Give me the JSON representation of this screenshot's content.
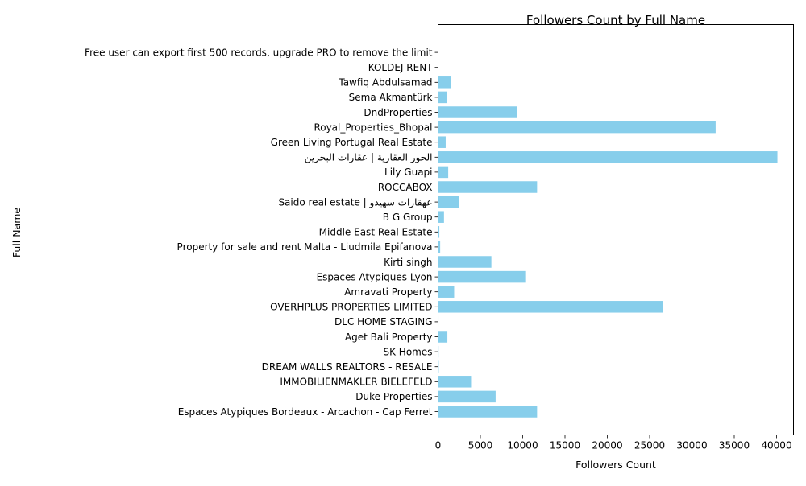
{
  "chart_data": {
    "type": "bar",
    "orientation": "horizontal",
    "title": "Followers Count by Full Name",
    "xlabel": "Followers Count",
    "ylabel": "Full Name",
    "xlim": [
      0,
      42000
    ],
    "xticks": [
      0,
      5000,
      10000,
      15000,
      20000,
      25000,
      30000,
      35000,
      40000
    ],
    "xtick_labels": [
      "0",
      "5000",
      "10000",
      "15000",
      "20000",
      "25000",
      "30000",
      "35000",
      "40000"
    ],
    "grid": false,
    "bar_color": "#87CEEB",
    "categories": [
      "Espaces Atypiques Bordeaux - Arcachon - Cap Ferret",
      "Duke Properties",
      "IMMOBILIENMAKLER BIELEFELD",
      "DREAM WALLS REALTORS - RESALE",
      "SK Homes",
      "Aget Bali Property",
      "DLC HOME STAGING",
      "OVERHPLUS PROPERTIES LIMITED",
      "Amravati Property",
      "Espaces Atypiques Lyon",
      "Kirti singh",
      "Property for sale and rent Malta - Liudmila Epifanova",
      "Middle East Real Estate",
      "B G Group",
      "Saido real estate | عهقارات سهيدو",
      "ROCCABOX",
      "Lily Guapi",
      "الحور العقارية | عقارات البحرين",
      "Green Living Portugal Real Estate",
      "Royal_Properties_Bhopal",
      "DndProperties",
      "Sema Akmantürk",
      "Tawfiq Abdulsamad",
      "KOLDEJ RENT",
      "Free user can export first 500 records, upgrade PRO to remove the limit"
    ],
    "values": [
      11700,
      6800,
      3900,
      80,
      60,
      1100,
      50,
      26600,
      1900,
      10300,
      6300,
      250,
      150,
      700,
      2500,
      11700,
      1200,
      40100,
      900,
      32800,
      9300,
      1000,
      1500,
      30,
      0
    ]
  }
}
